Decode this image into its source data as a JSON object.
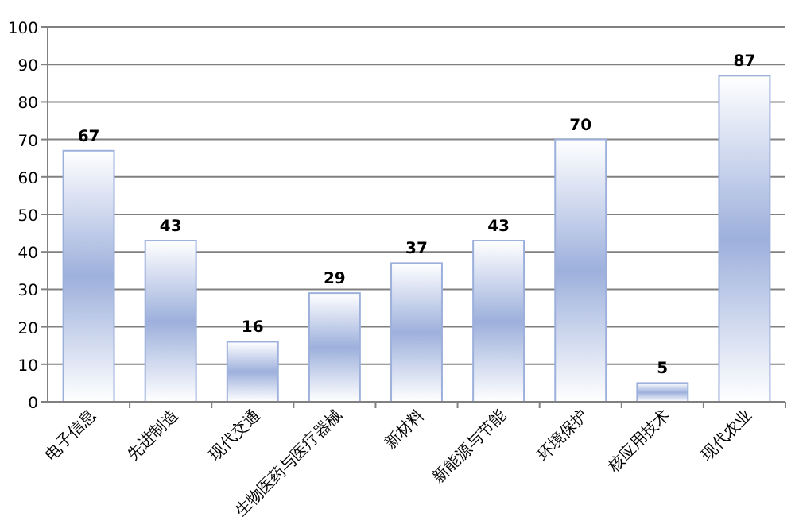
{
  "chart_data": {
    "type": "bar",
    "categories": [
      "电子信息",
      "先进制造",
      "现代交通",
      "生物医药与医疗器械",
      "新材料",
      "新能源与节能",
      "环境保护",
      "核应用技术",
      "现代农业"
    ],
    "values": [
      67,
      43,
      16,
      29,
      37,
      43,
      70,
      5,
      87
    ],
    "color": "#9db0dc",
    "ylim": [
      0,
      100
    ],
    "yticks": [
      0,
      10,
      20,
      30,
      40,
      50,
      60,
      70,
      80,
      90,
      100
    ],
    "grid": "y",
    "data_labels": true
  }
}
